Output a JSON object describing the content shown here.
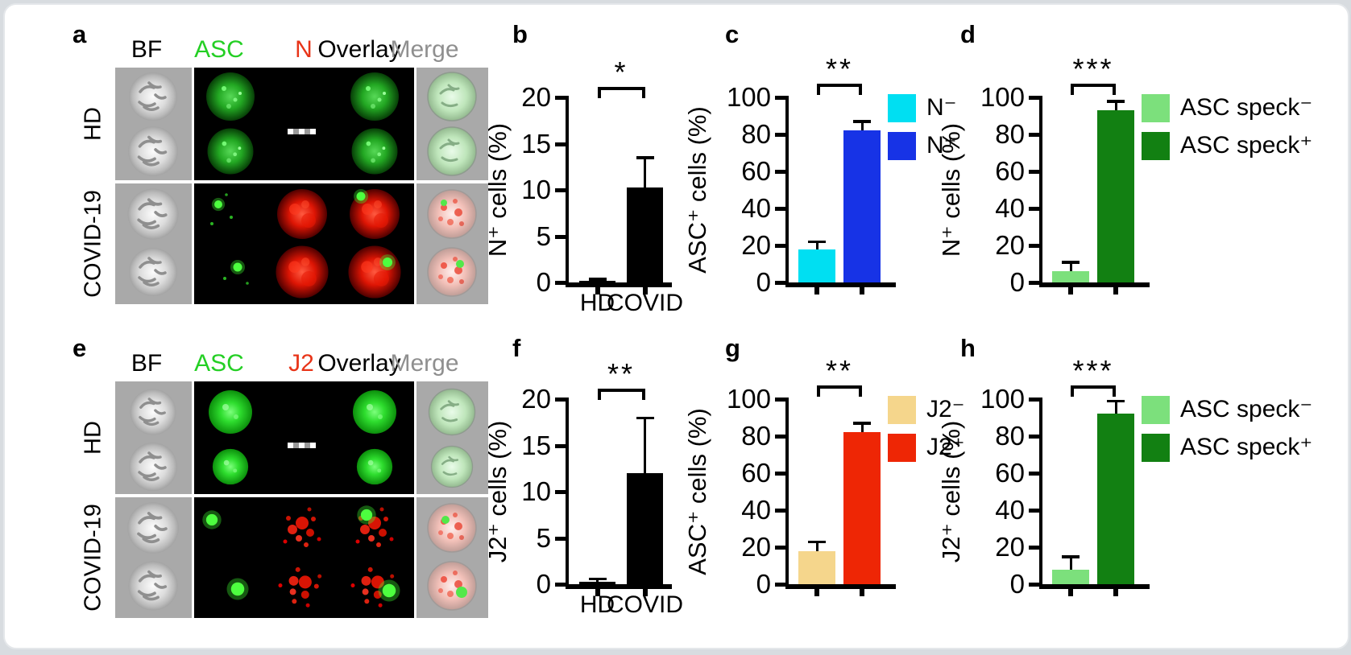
{
  "colors": {
    "page_background": "#d8dce0",
    "card_background": "#ffffff",
    "axis_black": "#000000",
    "microscopy_strip_gray": "#a9a9a9",
    "cyan": "#00dff2",
    "blue": "#1733e6",
    "light_green": "#7ce07c",
    "dark_green": "#128012",
    "tan": "#f5d68c",
    "red": "#ee2605"
  },
  "panel_letters": {
    "a": "a",
    "b": "b",
    "c": "c",
    "d": "d",
    "e": "e",
    "f": "f",
    "g": "g",
    "h": "h"
  },
  "microscopy_panels": [
    {
      "id": "a",
      "column_headers": [
        {
          "label": "BF",
          "color": "#000000"
        },
        {
          "label": "ASC",
          "color": "#24cf24"
        },
        {
          "label": "N",
          "color": "#e83418"
        },
        {
          "label": "Overlay",
          "color": "#000000"
        },
        {
          "label": "Merge",
          "color": "#8f8f8f"
        }
      ],
      "row_labels": [
        "HD",
        "COVID-19"
      ],
      "scale_bar_present": "true"
    },
    {
      "id": "e",
      "column_headers": [
        {
          "label": "BF",
          "color": "#000000"
        },
        {
          "label": "ASC",
          "color": "#24cf24"
        },
        {
          "label": "J2",
          "color": "#e83418"
        },
        {
          "label": "Overlay",
          "color": "#000000"
        },
        {
          "label": "Merge",
          "color": "#8f8f8f"
        }
      ],
      "row_labels": [
        "HD",
        "COVID-19"
      ],
      "scale_bar_present": "true"
    }
  ],
  "chart_data": [
    {
      "id": "b",
      "type": "bar",
      "ylabel": "N⁺ cells (%)",
      "ylim": [
        0,
        20
      ],
      "yticks": [
        0,
        5,
        10,
        15,
        20
      ],
      "categories": [
        "HD",
        "COVID"
      ],
      "values": [
        0.15,
        10.3
      ],
      "errors_plus": [
        0.2,
        3.2
      ],
      "bar_colors": [
        "#000000",
        "#000000"
      ],
      "significance": "*",
      "show_category_labels": true,
      "show_legend": false
    },
    {
      "id": "c",
      "type": "bar",
      "ylabel": "ASC⁺ cells (%)",
      "ylim": [
        0,
        100
      ],
      "yticks": [
        0,
        20,
        40,
        60,
        80,
        100
      ],
      "categories": [
        "N⁻",
        "N⁺"
      ],
      "values": [
        18,
        82
      ],
      "errors_plus": [
        4,
        5
      ],
      "bar_colors": [
        "#00dff2",
        "#1733e6"
      ],
      "significance": "**",
      "show_category_labels": false,
      "show_legend": true
    },
    {
      "id": "d",
      "type": "bar",
      "ylabel": "N⁺ cells (%)",
      "ylim": [
        0,
        100
      ],
      "yticks": [
        0,
        20,
        40,
        60,
        80,
        100
      ],
      "categories": [
        "ASC speck⁻",
        "ASC speck⁺"
      ],
      "values": [
        6,
        93
      ],
      "errors_plus": [
        5,
        5
      ],
      "bar_colors": [
        "#7ce07c",
        "#128012"
      ],
      "significance": "***",
      "show_category_labels": false,
      "show_legend": true
    },
    {
      "id": "f",
      "type": "bar",
      "ylabel": "J2⁺ cells (%)",
      "ylim": [
        0,
        20
      ],
      "yticks": [
        0,
        5,
        10,
        15,
        20
      ],
      "categories": [
        "HD",
        "COVID"
      ],
      "values": [
        0.3,
        12
      ],
      "errors_plus": [
        0.3,
        6
      ],
      "bar_colors": [
        "#000000",
        "#000000"
      ],
      "significance": "**",
      "show_category_labels": true,
      "show_legend": false
    },
    {
      "id": "g",
      "type": "bar",
      "ylabel": "ASC⁺ cells (%)",
      "ylim": [
        0,
        100
      ],
      "yticks": [
        0,
        20,
        40,
        60,
        80,
        100
      ],
      "categories": [
        "J2⁻",
        "J2⁺"
      ],
      "values": [
        18,
        82
      ],
      "errors_plus": [
        5,
        5
      ],
      "bar_colors": [
        "#f5d68c",
        "#ee2605"
      ],
      "significance": "**",
      "show_category_labels": false,
      "show_legend": true
    },
    {
      "id": "h",
      "type": "bar",
      "ylabel": "J2⁺ cells (%)",
      "ylim": [
        0,
        100
      ],
      "yticks": [
        0,
        20,
        40,
        60,
        80,
        100
      ],
      "categories": [
        "ASC speck⁻",
        "ASC speck⁺"
      ],
      "values": [
        8,
        92
      ],
      "errors_plus": [
        7,
        7
      ],
      "bar_colors": [
        "#7ce07c",
        "#128012"
      ],
      "significance": "***",
      "show_category_labels": false,
      "show_legend": true
    }
  ]
}
